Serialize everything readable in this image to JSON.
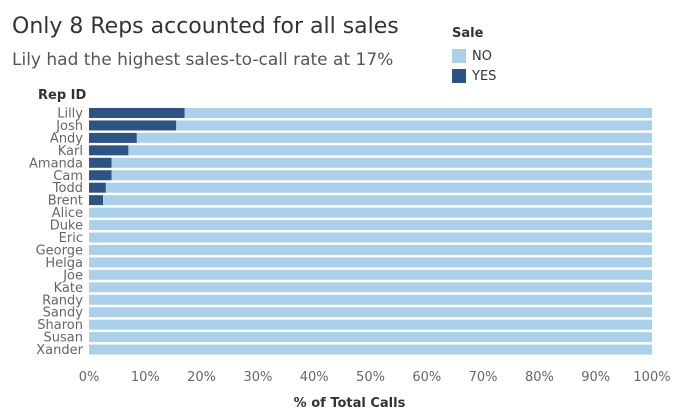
{
  "chart_data": {
    "type": "bar",
    "orientation": "horizontal",
    "stacked": true,
    "normalized": true,
    "title": "Only 8 Reps accounted for all sales",
    "subtitle": "Lily had the highest sales-to-call rate at 17%",
    "ylabel": "Rep ID",
    "xlabel": "% of Total Calls",
    "xlim": [
      0,
      100
    ],
    "x_ticks": [
      "0%",
      "10%",
      "20%",
      "30%",
      "40%",
      "50%",
      "60%",
      "70%",
      "80%",
      "90%",
      "100%"
    ],
    "x_tick_values": [
      0,
      10,
      20,
      30,
      40,
      50,
      60,
      70,
      80,
      90,
      100
    ],
    "categories": [
      "Lilly",
      "Josh",
      "Andy",
      "Karl",
      "Amanda",
      "Cam",
      "Todd",
      "Brent",
      "Alice",
      "Duke",
      "Eric",
      "George",
      "Helga",
      "Joe",
      "Kate",
      "Randy",
      "Sandy",
      "Sharon",
      "Susan",
      "Xander"
    ],
    "legend_title": "Sale",
    "legend_position": "top-right",
    "series": [
      {
        "name": "YES",
        "color": "#2c5382",
        "values": [
          17,
          15.5,
          8.5,
          7,
          4,
          4,
          3,
          2.5,
          0,
          0,
          0,
          0,
          0,
          0,
          0,
          0,
          0,
          0,
          0,
          0
        ]
      },
      {
        "name": "NO",
        "color": "#abd1ea",
        "values": [
          83,
          84.5,
          91.5,
          93,
          96,
          96,
          97,
          97.5,
          100,
          100,
          100,
          100,
          100,
          100,
          100,
          100,
          100,
          100,
          100,
          100
        ]
      }
    ],
    "grid": false
  }
}
